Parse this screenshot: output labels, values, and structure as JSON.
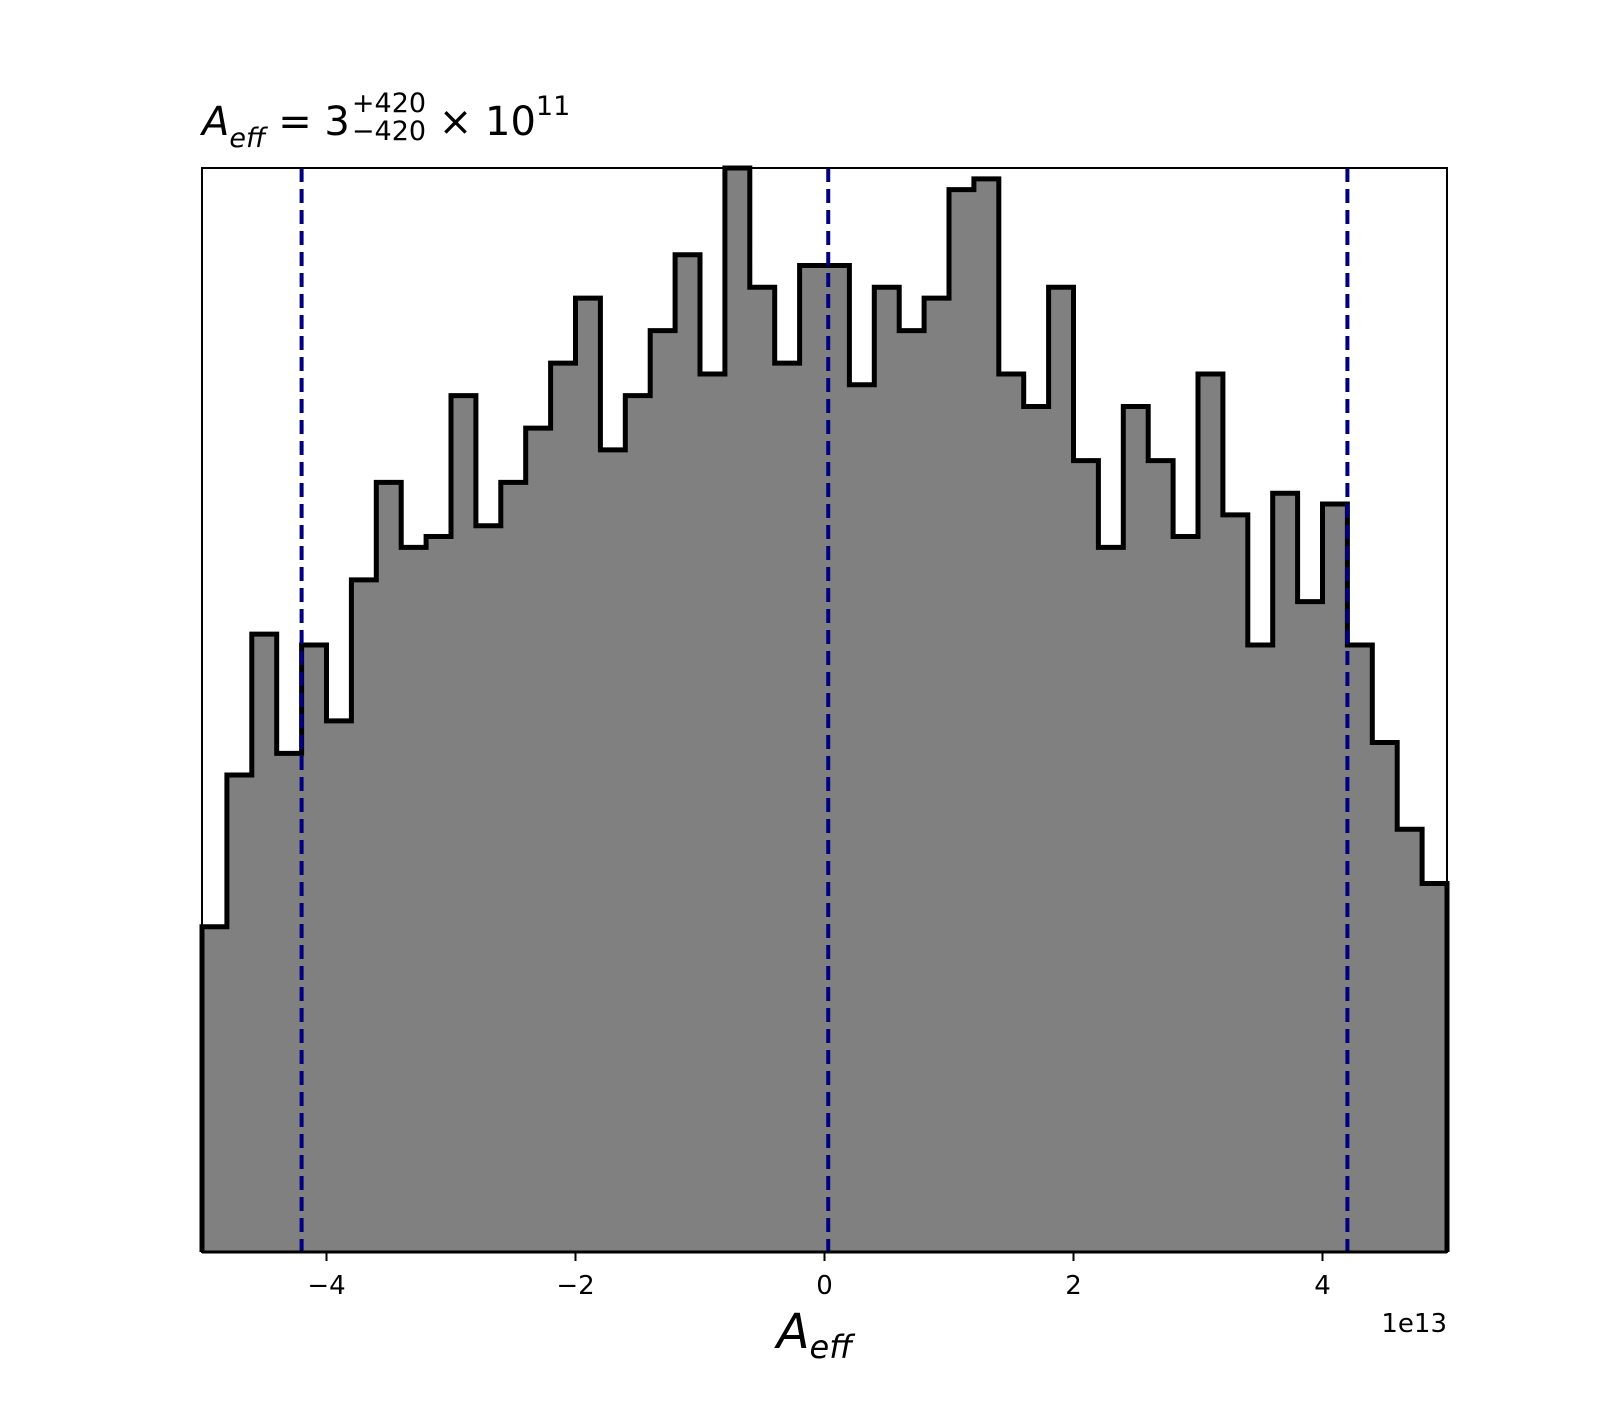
{
  "title": {
    "symbol": "A",
    "symbol_sub": "eff",
    "equals": "= 3",
    "upper_err": "+420",
    "lower_err": "−420",
    "times": "× 10",
    "power": "11"
  },
  "chart_data": {
    "type": "histogram",
    "title": "A_eff = 3^{+420}_{−420} × 10^{11}",
    "xlabel": "A_eff",
    "xlabel_main": "A",
    "xlabel_sub": "eff",
    "ylabel": "",
    "x_offset_label": "1e13",
    "xlim": [
      -5.0,
      5.0
    ],
    "ylim": [
      0,
      1.0
    ],
    "bin_edges_start": -5.0,
    "bin_width": 0.2,
    "counts": [
      0.3,
      0.44,
      0.57,
      0.46,
      0.56,
      0.49,
      0.62,
      0.71,
      0.65,
      0.66,
      0.79,
      0.67,
      0.71,
      0.76,
      0.82,
      0.88,
      0.74,
      0.79,
      0.85,
      0.92,
      0.81,
      1.0,
      0.89,
      0.82,
      0.91,
      0.91,
      0.8,
      0.89,
      0.85,
      0.88,
      0.98,
      0.99,
      0.81,
      0.78,
      0.89,
      0.73,
      0.65,
      0.78,
      0.73,
      0.66,
      0.81,
      0.68,
      0.56,
      0.7,
      0.6,
      0.69,
      0.56,
      0.47,
      0.39,
      0.34
    ],
    "fill_color": "#808080",
    "edge_color": "#000000",
    "vlines": [
      {
        "x": -4.2,
        "color": "#000080",
        "style": "dashed"
      },
      {
        "x": 0.03,
        "color": "#000080",
        "style": "dashed"
      },
      {
        "x": 4.2,
        "color": "#000080",
        "style": "dashed"
      }
    ],
    "xticks": [
      {
        "value": -4,
        "label": "−4"
      },
      {
        "value": -2,
        "label": "−2"
      },
      {
        "value": 0,
        "label": "0"
      },
      {
        "value": 2,
        "label": "2"
      },
      {
        "value": 4,
        "label": "4"
      }
    ],
    "grid": false,
    "y_axis_visible": false
  }
}
